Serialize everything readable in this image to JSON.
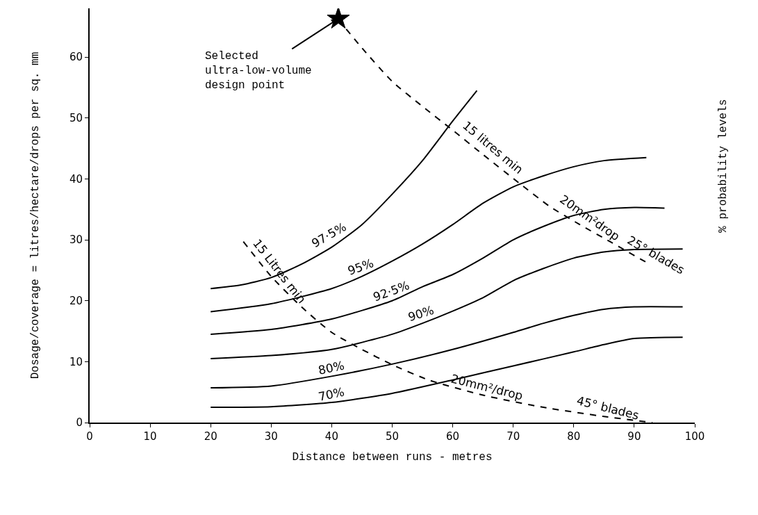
{
  "chart_data": {
    "type": "line",
    "xlabel": "Distance between runs - metres",
    "ylabel": "Dosage/coverage = litres/hectare/drops per sq. mm",
    "y2label": "% probability levels",
    "xlim": [
      0,
      100
    ],
    "xticks": [
      0,
      10,
      20,
      30,
      40,
      50,
      60,
      70,
      80,
      90,
      100
    ],
    "ylim": [
      0,
      68
    ],
    "yticks": [
      0,
      10,
      20,
      30,
      40,
      50,
      60
    ],
    "series": [
      {
        "color": "#000000",
        "line_style": "solid",
        "x": [
          20,
          25,
          30,
          35,
          40,
          45,
          50,
          55,
          60,
          64
        ],
        "values": [
          22,
          22.6,
          23.8,
          26,
          28.8,
          32.5,
          37.5,
          43,
          49.5,
          54.5
        ]
      },
      {
        "color": "#000000",
        "line_style": "solid",
        "x": [
          20,
          30,
          40,
          45,
          50,
          55,
          60,
          65,
          70,
          75,
          80,
          85,
          92
        ],
        "values": [
          18.2,
          19.5,
          22,
          24,
          26.5,
          29.3,
          32.5,
          36,
          38.7,
          40.5,
          42,
          43,
          43.5
        ]
      },
      {
        "color": "#000000",
        "line_style": "solid",
        "x": [
          20,
          30,
          40,
          50,
          55,
          60,
          65,
          70,
          75,
          80,
          85,
          90,
          95
        ],
        "values": [
          14.5,
          15.3,
          17,
          20,
          22.3,
          24.3,
          27,
          30,
          32.2,
          34,
          35,
          35.3,
          35.2
        ]
      },
      {
        "color": "#000000",
        "line_style": "solid",
        "x": [
          20,
          30,
          40,
          50,
          55,
          60,
          65,
          70,
          75,
          80,
          85,
          90,
          98
        ],
        "values": [
          10.5,
          11,
          12,
          14.5,
          16.3,
          18.3,
          20.5,
          23.3,
          25.3,
          27,
          28,
          28.4,
          28.5
        ]
      },
      {
        "color": "#000000",
        "line_style": "solid",
        "x": [
          20,
          30,
          40,
          50,
          60,
          70,
          75,
          80,
          85,
          90,
          98
        ],
        "values": [
          5.7,
          6,
          7.6,
          9.6,
          12,
          14.8,
          16.3,
          17.6,
          18.6,
          19,
          19
        ]
      },
      {
        "color": "#000000",
        "line_style": "solid",
        "x": [
          20,
          30,
          40,
          50,
          60,
          70,
          80,
          85,
          90,
          98
        ],
        "values": [
          2.5,
          2.6,
          3.3,
          4.8,
          7,
          9.3,
          11.6,
          12.8,
          13.8,
          14
        ]
      },
      {
        "color": "#000000",
        "line_style": "dashed",
        "x": [
          42.4,
          45,
          50,
          55,
          60,
          65,
          71,
          76,
          81,
          86,
          92
        ],
        "values": [
          64.6,
          61.5,
          56,
          51.9,
          48,
          44,
          39.3,
          35.5,
          32.5,
          29.7,
          26.3
        ]
      },
      {
        "color": "#000000",
        "line_style": "dashed",
        "x": [
          25.4,
          30,
          35,
          40,
          45,
          50,
          56,
          65,
          75,
          85,
          93
        ],
        "values": [
          29.7,
          24,
          19,
          14.8,
          12,
          9.5,
          7,
          4.5,
          2.5,
          1,
          0
        ]
      },
      {
        "type": "scatter",
        "marker": "star",
        "color": "#000000",
        "x": [
          41.1
        ],
        "values": [
          66.3
        ]
      }
    ],
    "annotations": [
      {
        "text": "Selected\nultra-low-volume\ndesign point",
        "x": 41.1,
        "y": 66.3
      },
      {
        "text": "97·5%",
        "x": 40,
        "y": 28.8
      },
      {
        "text": "95%",
        "x": 45,
        "y": 24
      },
      {
        "text": "92·5%",
        "x": 50,
        "y": 20
      },
      {
        "text": "90%",
        "x": 55,
        "y": 16.3
      },
      {
        "text": "80%",
        "x": 40,
        "y": 7.6
      },
      {
        "text": "70%",
        "x": 40,
        "y": 3.3
      },
      {
        "text": "15 litres min",
        "x": 65,
        "y": 44
      },
      {
        "text": "20mm²drop",
        "x": 81,
        "y": 32.5
      },
      {
        "text": "25° blades",
        "x": 92,
        "y": 26.3
      },
      {
        "text": "15 Litres min",
        "x": 30,
        "y": 24
      },
      {
        "text": "20mm²/drop",
        "x": 65,
        "y": 4.5
      },
      {
        "text": "45° blades",
        "x": 85,
        "y": 1
      }
    ]
  }
}
